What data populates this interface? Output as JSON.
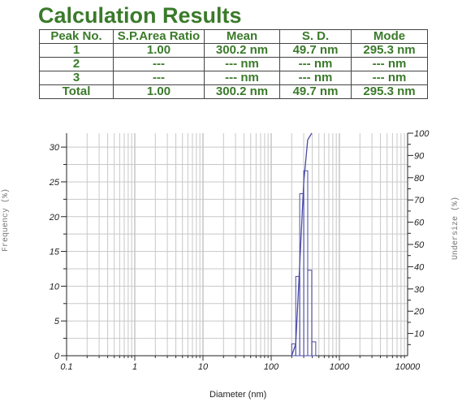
{
  "title": "Calculation Results",
  "table": {
    "headers": [
      "Peak No.",
      "S.P.Area Ratio",
      "Mean",
      "S. D.",
      "Mode"
    ],
    "rows": [
      [
        "1",
        "1.00",
        "300.2 nm",
        "49.7 nm",
        "295.3 nm"
      ],
      [
        "2",
        "---",
        "--- nm",
        "--- nm",
        "--- nm"
      ],
      [
        "3",
        "---",
        "--- nm",
        "--- nm",
        "--- nm"
      ],
      [
        "Total",
        "1.00",
        "300.2 nm",
        "49.7 nm",
        "295.3 nm"
      ]
    ]
  },
  "colors": {
    "title_green": "#3a7a2a",
    "curve": "#4a4aa8",
    "grid": "#c8c8c8"
  },
  "chart_data": {
    "type": "bar",
    "xlabel": "Diameter (nm)",
    "ylabel_left": "Frequency (%)",
    "ylabel_right": "Undersize (%)",
    "x_scale": "log",
    "xlim": [
      0.1,
      10000
    ],
    "ylim_left": [
      0,
      32
    ],
    "ylim_right": [
      0,
      100
    ],
    "x_ticks": [
      "0.1",
      "1",
      "10",
      "100",
      "1000",
      "10000"
    ],
    "y_ticks_left": [
      "0",
      "5",
      "10",
      "15",
      "20",
      "25",
      "30"
    ],
    "y_ticks_right": [
      "10",
      "20",
      "30",
      "40",
      "50",
      "60",
      "70",
      "80",
      "90",
      "100"
    ],
    "grid": true,
    "bars": [
      {
        "x0": 200,
        "x1": 229,
        "value": 1.7
      },
      {
        "x0": 229,
        "x1": 262,
        "value": 11.4
      },
      {
        "x0": 262,
        "x1": 300,
        "value": 23.3
      },
      {
        "x0": 300,
        "x1": 343,
        "value": 26.6
      },
      {
        "x0": 343,
        "x1": 393,
        "value": 12.3
      },
      {
        "x0": 393,
        "x1": 450,
        "value": 2.0
      }
    ],
    "undersize": [
      {
        "x": 200,
        "y": 0
      },
      {
        "x": 229,
        "y": 5.3
      },
      {
        "x": 262,
        "y": 41
      },
      {
        "x": 300,
        "y": 78
      },
      {
        "x": 343,
        "y": 97
      },
      {
        "x": 393,
        "y": 100
      }
    ]
  }
}
